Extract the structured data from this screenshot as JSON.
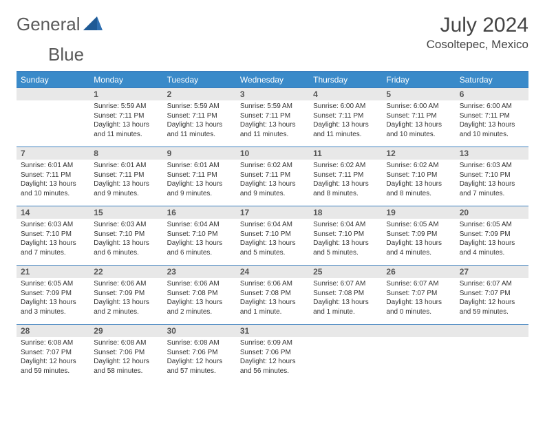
{
  "logo": {
    "text_a": "General",
    "text_b": "Blue"
  },
  "title": "July 2024",
  "location": "Cosoltepec, Mexico",
  "colors": {
    "header_bg": "#3a8ac9",
    "rule": "#3a7fbf",
    "daynum_bg": "#e8e8e8",
    "logo_accent": "#2f6fb0"
  },
  "weekdays": [
    "Sunday",
    "Monday",
    "Tuesday",
    "Wednesday",
    "Thursday",
    "Friday",
    "Saturday"
  ],
  "weeks": [
    [
      {
        "n": "",
        "sr": "",
        "ss": "",
        "dl1": "",
        "dl2": ""
      },
      {
        "n": "1",
        "sr": "Sunrise: 5:59 AM",
        "ss": "Sunset: 7:11 PM",
        "dl1": "Daylight: 13 hours",
        "dl2": "and 11 minutes."
      },
      {
        "n": "2",
        "sr": "Sunrise: 5:59 AM",
        "ss": "Sunset: 7:11 PM",
        "dl1": "Daylight: 13 hours",
        "dl2": "and 11 minutes."
      },
      {
        "n": "3",
        "sr": "Sunrise: 5:59 AM",
        "ss": "Sunset: 7:11 PM",
        "dl1": "Daylight: 13 hours",
        "dl2": "and 11 minutes."
      },
      {
        "n": "4",
        "sr": "Sunrise: 6:00 AM",
        "ss": "Sunset: 7:11 PM",
        "dl1": "Daylight: 13 hours",
        "dl2": "and 11 minutes."
      },
      {
        "n": "5",
        "sr": "Sunrise: 6:00 AM",
        "ss": "Sunset: 7:11 PM",
        "dl1": "Daylight: 13 hours",
        "dl2": "and 10 minutes."
      },
      {
        "n": "6",
        "sr": "Sunrise: 6:00 AM",
        "ss": "Sunset: 7:11 PM",
        "dl1": "Daylight: 13 hours",
        "dl2": "and 10 minutes."
      }
    ],
    [
      {
        "n": "7",
        "sr": "Sunrise: 6:01 AM",
        "ss": "Sunset: 7:11 PM",
        "dl1": "Daylight: 13 hours",
        "dl2": "and 10 minutes."
      },
      {
        "n": "8",
        "sr": "Sunrise: 6:01 AM",
        "ss": "Sunset: 7:11 PM",
        "dl1": "Daylight: 13 hours",
        "dl2": "and 9 minutes."
      },
      {
        "n": "9",
        "sr": "Sunrise: 6:01 AM",
        "ss": "Sunset: 7:11 PM",
        "dl1": "Daylight: 13 hours",
        "dl2": "and 9 minutes."
      },
      {
        "n": "10",
        "sr": "Sunrise: 6:02 AM",
        "ss": "Sunset: 7:11 PM",
        "dl1": "Daylight: 13 hours",
        "dl2": "and 9 minutes."
      },
      {
        "n": "11",
        "sr": "Sunrise: 6:02 AM",
        "ss": "Sunset: 7:11 PM",
        "dl1": "Daylight: 13 hours",
        "dl2": "and 8 minutes."
      },
      {
        "n": "12",
        "sr": "Sunrise: 6:02 AM",
        "ss": "Sunset: 7:10 PM",
        "dl1": "Daylight: 13 hours",
        "dl2": "and 8 minutes."
      },
      {
        "n": "13",
        "sr": "Sunrise: 6:03 AM",
        "ss": "Sunset: 7:10 PM",
        "dl1": "Daylight: 13 hours",
        "dl2": "and 7 minutes."
      }
    ],
    [
      {
        "n": "14",
        "sr": "Sunrise: 6:03 AM",
        "ss": "Sunset: 7:10 PM",
        "dl1": "Daylight: 13 hours",
        "dl2": "and 7 minutes."
      },
      {
        "n": "15",
        "sr": "Sunrise: 6:03 AM",
        "ss": "Sunset: 7:10 PM",
        "dl1": "Daylight: 13 hours",
        "dl2": "and 6 minutes."
      },
      {
        "n": "16",
        "sr": "Sunrise: 6:04 AM",
        "ss": "Sunset: 7:10 PM",
        "dl1": "Daylight: 13 hours",
        "dl2": "and 6 minutes."
      },
      {
        "n": "17",
        "sr": "Sunrise: 6:04 AM",
        "ss": "Sunset: 7:10 PM",
        "dl1": "Daylight: 13 hours",
        "dl2": "and 5 minutes."
      },
      {
        "n": "18",
        "sr": "Sunrise: 6:04 AM",
        "ss": "Sunset: 7:10 PM",
        "dl1": "Daylight: 13 hours",
        "dl2": "and 5 minutes."
      },
      {
        "n": "19",
        "sr": "Sunrise: 6:05 AM",
        "ss": "Sunset: 7:09 PM",
        "dl1": "Daylight: 13 hours",
        "dl2": "and 4 minutes."
      },
      {
        "n": "20",
        "sr": "Sunrise: 6:05 AM",
        "ss": "Sunset: 7:09 PM",
        "dl1": "Daylight: 13 hours",
        "dl2": "and 4 minutes."
      }
    ],
    [
      {
        "n": "21",
        "sr": "Sunrise: 6:05 AM",
        "ss": "Sunset: 7:09 PM",
        "dl1": "Daylight: 13 hours",
        "dl2": "and 3 minutes."
      },
      {
        "n": "22",
        "sr": "Sunrise: 6:06 AM",
        "ss": "Sunset: 7:09 PM",
        "dl1": "Daylight: 13 hours",
        "dl2": "and 2 minutes."
      },
      {
        "n": "23",
        "sr": "Sunrise: 6:06 AM",
        "ss": "Sunset: 7:08 PM",
        "dl1": "Daylight: 13 hours",
        "dl2": "and 2 minutes."
      },
      {
        "n": "24",
        "sr": "Sunrise: 6:06 AM",
        "ss": "Sunset: 7:08 PM",
        "dl1": "Daylight: 13 hours",
        "dl2": "and 1 minute."
      },
      {
        "n": "25",
        "sr": "Sunrise: 6:07 AM",
        "ss": "Sunset: 7:08 PM",
        "dl1": "Daylight: 13 hours",
        "dl2": "and 1 minute."
      },
      {
        "n": "26",
        "sr": "Sunrise: 6:07 AM",
        "ss": "Sunset: 7:07 PM",
        "dl1": "Daylight: 13 hours",
        "dl2": "and 0 minutes."
      },
      {
        "n": "27",
        "sr": "Sunrise: 6:07 AM",
        "ss": "Sunset: 7:07 PM",
        "dl1": "Daylight: 12 hours",
        "dl2": "and 59 minutes."
      }
    ],
    [
      {
        "n": "28",
        "sr": "Sunrise: 6:08 AM",
        "ss": "Sunset: 7:07 PM",
        "dl1": "Daylight: 12 hours",
        "dl2": "and 59 minutes."
      },
      {
        "n": "29",
        "sr": "Sunrise: 6:08 AM",
        "ss": "Sunset: 7:06 PM",
        "dl1": "Daylight: 12 hours",
        "dl2": "and 58 minutes."
      },
      {
        "n": "30",
        "sr": "Sunrise: 6:08 AM",
        "ss": "Sunset: 7:06 PM",
        "dl1": "Daylight: 12 hours",
        "dl2": "and 57 minutes."
      },
      {
        "n": "31",
        "sr": "Sunrise: 6:09 AM",
        "ss": "Sunset: 7:06 PM",
        "dl1": "Daylight: 12 hours",
        "dl2": "and 56 minutes."
      },
      {
        "n": "",
        "sr": "",
        "ss": "",
        "dl1": "",
        "dl2": ""
      },
      {
        "n": "",
        "sr": "",
        "ss": "",
        "dl1": "",
        "dl2": ""
      },
      {
        "n": "",
        "sr": "",
        "ss": "",
        "dl1": "",
        "dl2": ""
      }
    ]
  ]
}
